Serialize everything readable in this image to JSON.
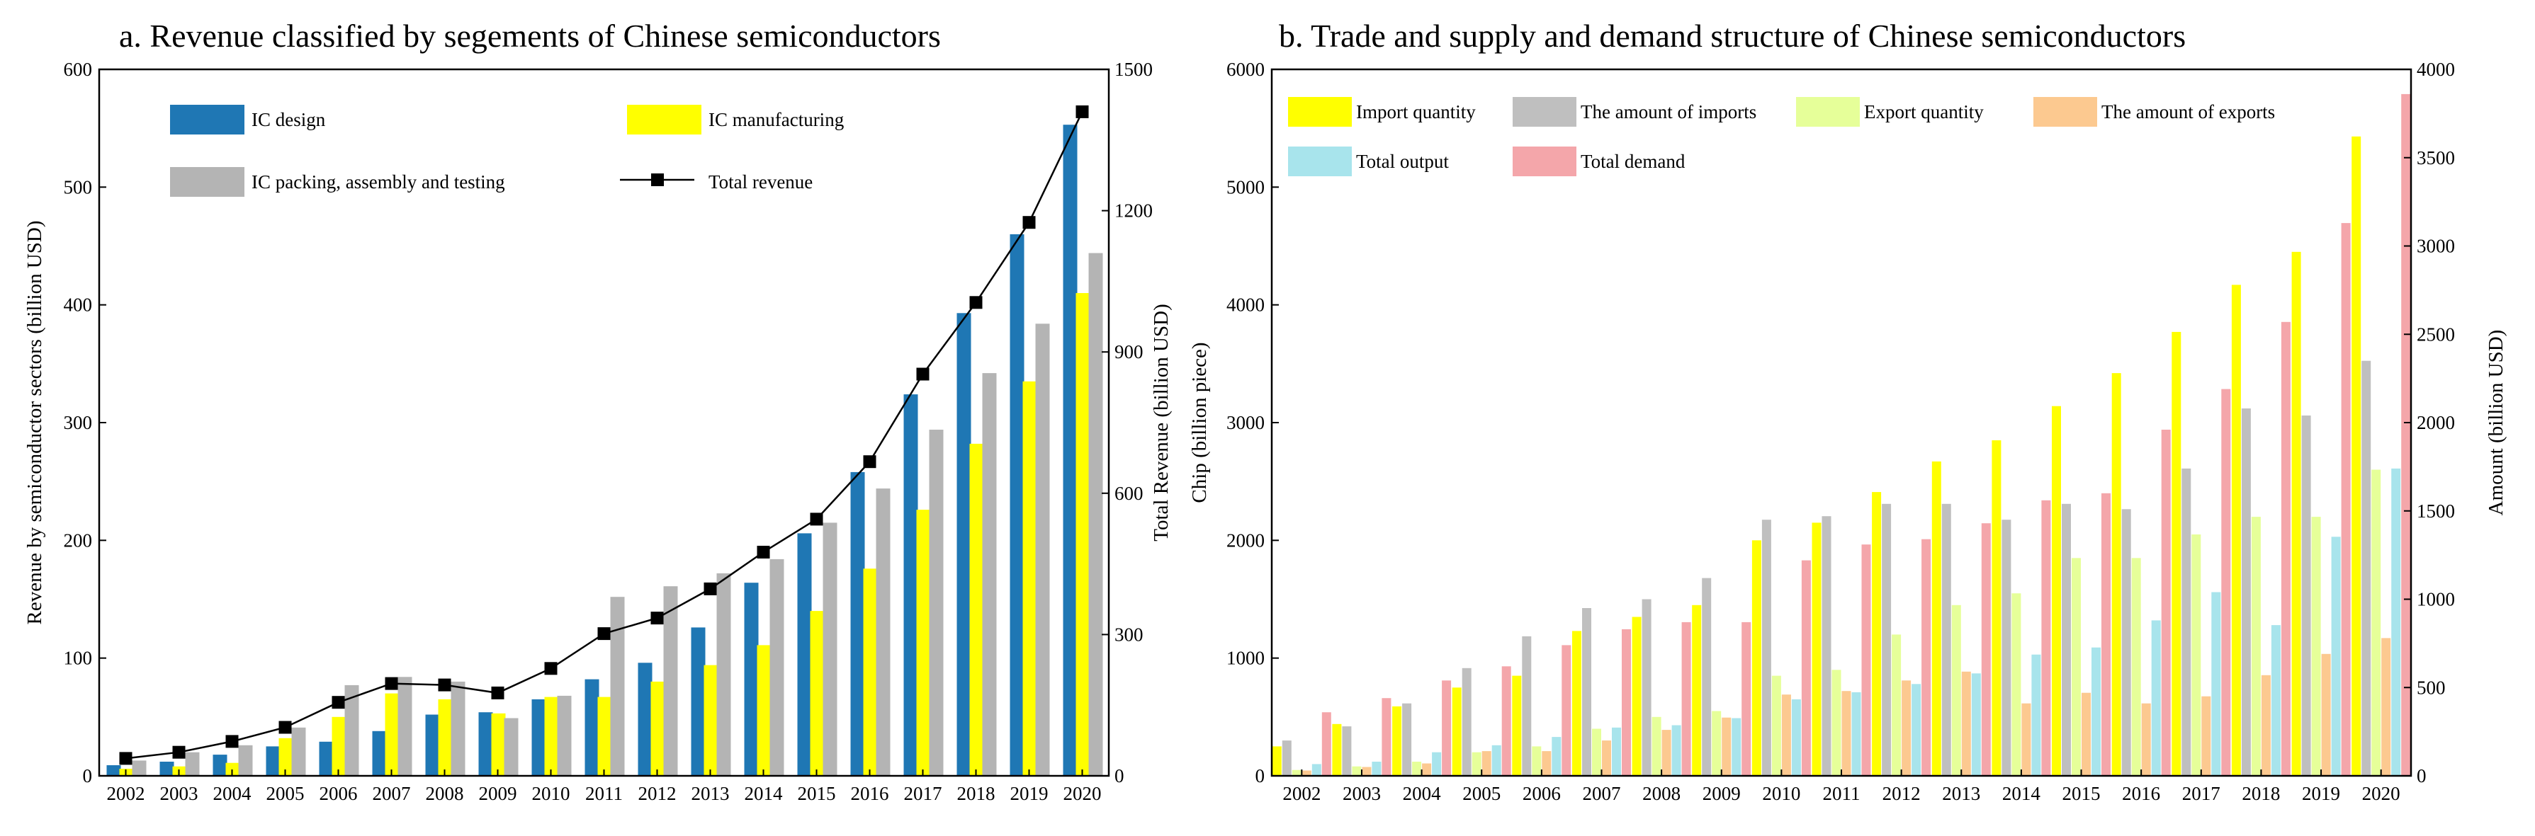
{
  "chart_data": [
    {
      "type": "bar",
      "title": "a. Revenue classified by segements of Chinese semiconductors",
      "categories": [
        "2002",
        "2003",
        "2004",
        "2005",
        "2006",
        "2007",
        "2008",
        "2009",
        "2010",
        "2011",
        "2012",
        "2013",
        "2014",
        "2015",
        "2016",
        "2017",
        "2018",
        "2019",
        "2020"
      ],
      "ylabel": "Revenue by semiconductor sectors (billion USD)",
      "y2label": "Total Revenue (billion USD)",
      "ylim": [
        0,
        600
      ],
      "y2lim": [
        0,
        1500
      ],
      "yticks": [
        "0",
        "100",
        "200",
        "300",
        "400",
        "500",
        "600"
      ],
      "y2ticks": [
        "0",
        "300",
        "600",
        "900",
        "1200",
        "1500"
      ],
      "series": [
        {
          "name": "IC design",
          "color": "#1f77b4",
          "axis": "left",
          "values": [
            9,
            12,
            18,
            25,
            29,
            38,
            52,
            54,
            65,
            82,
            96,
            126,
            164,
            206,
            258,
            324,
            393,
            460,
            553
          ]
        },
        {
          "name": "IC manufacturing",
          "color": "#ffff00",
          "axis": "left",
          "values": [
            6,
            8,
            11,
            32,
            50,
            70,
            65,
            53,
            67,
            67,
            80,
            94,
            111,
            140,
            176,
            226,
            282,
            335,
            410
          ]
        },
        {
          "name": "IC packing, assembly and testing",
          "color": "#b4b4b4",
          "axis": "left",
          "values": [
            13,
            20,
            26,
            41,
            77,
            84,
            80,
            49,
            68,
            152,
            161,
            172,
            184,
            215,
            244,
            294,
            342,
            384,
            444
          ]
        },
        {
          "name": "Total revenue",
          "type": "line",
          "marker": "square",
          "axis": "right",
          "values": [
            37,
            50,
            73,
            103,
            156,
            196,
            193,
            176,
            228,
            302,
            335,
            397,
            475,
            545,
            667,
            853,
            1005,
            1175,
            1410
          ]
        }
      ],
      "legend": "top-left"
    },
    {
      "type": "bar",
      "title": "b.  Trade and supply and demand structure of Chinese semiconductors",
      "categories": [
        "2002",
        "2003",
        "2004",
        "2005",
        "2006",
        "2007",
        "2008",
        "2009",
        "2010",
        "2011",
        "2012",
        "2013",
        "2014",
        "2015",
        "2016",
        "2017",
        "2018",
        "2019",
        "2020"
      ],
      "ylabel": "Chip (billion piece)",
      "y2label": "Amount (billion USD)",
      "ylim": [
        0,
        6000
      ],
      "y2lim": [
        0,
        4000
      ],
      "yticks": [
        "0",
        "1000",
        "2000",
        "3000",
        "4000",
        "5000",
        "6000"
      ],
      "y2ticks": [
        "0",
        "500",
        "1000",
        "1500",
        "2000",
        "2500",
        "3000",
        "3500",
        "4000"
      ],
      "series": [
        {
          "name": "Import quantity",
          "color": "#ffff00",
          "axis": "left",
          "values": [
            250,
            440,
            590,
            750,
            850,
            1230,
            1350,
            1450,
            2000,
            2150,
            2410,
            2670,
            2850,
            3140,
            3420,
            3770,
            4170,
            4450,
            5430
          ]
        },
        {
          "name": "The amount of imports",
          "color": "#bfbfbf",
          "axis": "right",
          "values": [
            200,
            280,
            410,
            610,
            790,
            950,
            1000,
            1120,
            1450,
            1470,
            1540,
            1540,
            1450,
            1540,
            1510,
            1740,
            2080,
            2040,
            2350
          ]
        },
        {
          "name": "Export quantity",
          "color": "#e6ff99",
          "axis": "left",
          "values": [
            50,
            80,
            120,
            200,
            250,
            400,
            500,
            550,
            850,
            900,
            1200,
            1450,
            1550,
            1850,
            1850,
            2050,
            2200,
            2200,
            2600
          ]
        },
        {
          "name": "The amount of exports",
          "color": "#fcc990",
          "axis": "right",
          "values": [
            30,
            50,
            70,
            140,
            140,
            200,
            260,
            330,
            460,
            480,
            540,
            590,
            410,
            470,
            410,
            450,
            570,
            690,
            780
          ]
        },
        {
          "name": "Total output",
          "color": "#a8e4ec",
          "axis": "left",
          "values": [
            100,
            120,
            200,
            260,
            330,
            410,
            430,
            490,
            650,
            710,
            780,
            870,
            1030,
            1090,
            1320,
            1560,
            1280,
            2030,
            2610
          ]
        },
        {
          "name": "Total demand",
          "color": "#f4a6aa",
          "axis": "right",
          "values": [
            360,
            440,
            540,
            620,
            740,
            830,
            870,
            870,
            1220,
            1310,
            1340,
            1430,
            1560,
            1600,
            1960,
            2190,
            2570,
            3130,
            3860
          ]
        }
      ],
      "legend": "top-left"
    }
  ]
}
